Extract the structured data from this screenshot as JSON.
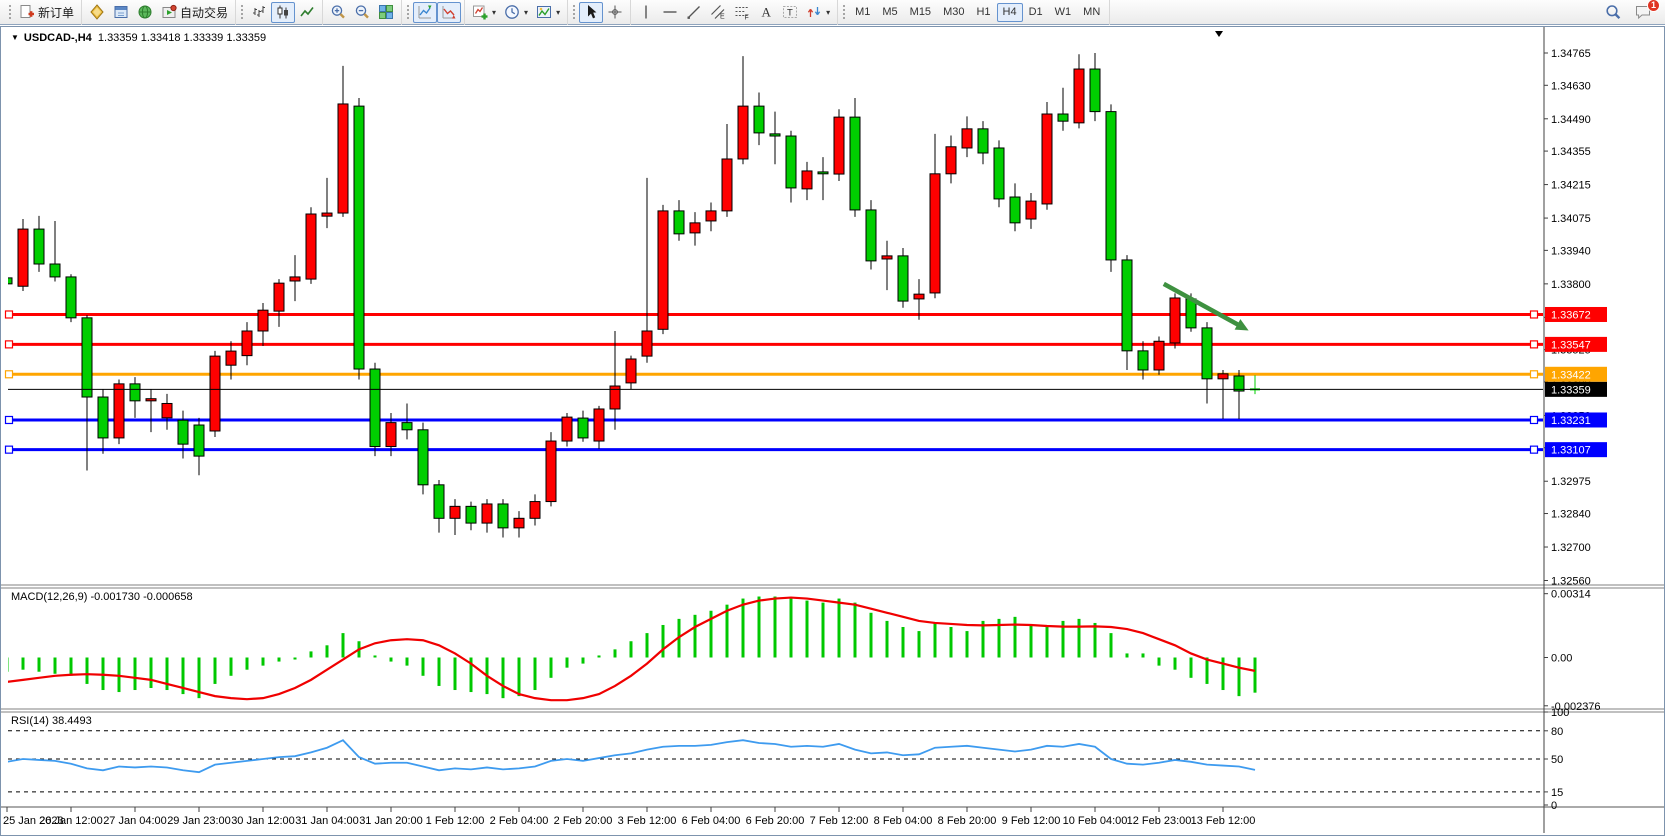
{
  "toolbar": {
    "groups": [
      {
        "name": "orders",
        "grip": true,
        "items": [
          {
            "name": "new-order",
            "icon": "new-order",
            "label": "新订单"
          }
        ]
      },
      {
        "name": "panels",
        "grip": false,
        "items": [
          {
            "name": "market-watch",
            "icon": "market-watch"
          },
          {
            "name": "data-window",
            "icon": "data-window"
          },
          {
            "name": "navigator",
            "icon": "navigator"
          },
          {
            "name": "autotrading",
            "icon": "autotrading",
            "label": "自动交易"
          }
        ]
      },
      {
        "name": "chart-types",
        "grip": true,
        "items": [
          {
            "name": "bar-chart-mode",
            "icon": "bar-chart"
          },
          {
            "name": "candle-chart-mode",
            "icon": "candle-chart",
            "pressed": true
          },
          {
            "name": "line-chart-mode",
            "icon": "line-chart"
          }
        ]
      },
      {
        "name": "zooming",
        "grip": false,
        "items": [
          {
            "name": "zoom-in",
            "icon": "zoom-in"
          },
          {
            "name": "zoom-out",
            "icon": "zoom-out"
          },
          {
            "name": "tile-windows",
            "icon": "tile-windows"
          }
        ]
      },
      {
        "name": "trade-level-toggles",
        "grip": true,
        "items": [
          {
            "name": "show-trade-levels",
            "icon": "trade-levels",
            "pressed": true
          },
          {
            "name": "show-trade-history",
            "icon": "trade-levels-alt",
            "pressed": true
          }
        ]
      },
      {
        "name": "insert-tools",
        "grip": false,
        "items": [
          {
            "name": "add-indicator",
            "icon": "add-indicator",
            "dropdown": true
          },
          {
            "name": "periods",
            "icon": "periods",
            "dropdown": true
          },
          {
            "name": "templates",
            "icon": "templates",
            "dropdown": true
          }
        ]
      },
      {
        "name": "pointer-tools",
        "grip": true,
        "items": [
          {
            "name": "cursor",
            "icon": "cursor",
            "pressed": true
          },
          {
            "name": "crosshair",
            "icon": "crosshair"
          }
        ]
      },
      {
        "name": "drawing-tools",
        "grip": false,
        "items": [
          {
            "name": "vertical-line-tool",
            "icon": "vline"
          },
          {
            "name": "horizontal-line-tool",
            "icon": "hline"
          },
          {
            "name": "trendline-tool",
            "icon": "trendline"
          },
          {
            "name": "channel-tool",
            "icon": "channel"
          },
          {
            "name": "fibonacci-tool",
            "icon": "fibonacci"
          },
          {
            "name": "text-tool",
            "icon": "text"
          },
          {
            "name": "label-tool",
            "icon": "label"
          },
          {
            "name": "arrows-tool",
            "icon": "arrows",
            "dropdown": true
          }
        ]
      },
      {
        "name": "timeframes",
        "grip": true,
        "items": [
          {
            "name": "tf-m1",
            "label": "M1",
            "tf": true
          },
          {
            "name": "tf-m5",
            "label": "M5",
            "tf": true
          },
          {
            "name": "tf-m15",
            "label": "M15",
            "tf": true
          },
          {
            "name": "tf-m30",
            "label": "M30",
            "tf": true
          },
          {
            "name": "tf-h1",
            "label": "H1",
            "tf": true
          },
          {
            "name": "tf-h4",
            "label": "H4",
            "tf": true,
            "pressed": true
          },
          {
            "name": "tf-d1",
            "label": "D1",
            "tf": true
          },
          {
            "name": "tf-w1",
            "label": "W1",
            "tf": true
          },
          {
            "name": "tf-mn",
            "label": "MN",
            "tf": true
          }
        ]
      }
    ],
    "right": [
      {
        "name": "search",
        "icon": "search"
      },
      {
        "name": "notifications",
        "icon": "chat",
        "badge": "1"
      }
    ]
  },
  "chart": {
    "title_symbol": "USDCAD-,H4",
    "title_ohlc": "1.33359 1.33418 1.33339 1.33359"
  },
  "panels": {
    "macd_label": "MACD(12,26,9) -0.001730 -0.000658",
    "rsi_label": "RSI(14) 38.4493"
  },
  "chart_data": {
    "type": "candlestick",
    "symbol": "USDCAD-",
    "timeframe": "H4",
    "bull_color": "#FF0000",
    "bear_color": "#00CE00",
    "note_colors": "chinese convention: red = up, green = down",
    "price_axis_ticks": [
      "1.34765",
      "1.34630",
      "1.34490",
      "1.34355",
      "1.34215",
      "1.34075",
      "1.33940",
      "1.33800",
      "1.33660",
      "1.33525",
      "1.33390",
      "1.33250",
      "1.33115",
      "1.32975",
      "1.32840",
      "1.32700",
      "1.32560"
    ],
    "time_labels": [
      "25 Jan 2023",
      "26 Jan 12:00",
      "27 Jan 04:00",
      "29 Jan 23:00",
      "30 Jan 12:00",
      "31 Jan 04:00",
      "31 Jan 20:00",
      "1 Feb 12:00",
      "2 Feb 04:00",
      "2 Feb 20:00",
      "3 Feb 12:00",
      "6 Feb 04:00",
      "6 Feb 20:00",
      "7 Feb 12:00",
      "8 Feb 04:00",
      "8 Feb 20:00",
      "9 Feb 12:00",
      "10 Feb 04:00",
      "12 Feb 23:00",
      "13 Feb 12:00"
    ],
    "candles": [
      [
        1.33825,
        1.3387,
        1.3377,
        1.338
      ],
      [
        1.3379,
        1.34071,
        1.3377,
        1.34029
      ],
      [
        1.34029,
        1.34084,
        1.3385,
        1.33883
      ],
      [
        1.33883,
        1.34063,
        1.3381,
        1.33829
      ],
      [
        1.33829,
        1.3384,
        1.3364,
        1.33658
      ],
      [
        1.33658,
        1.3367,
        1.3302,
        1.33327
      ],
      [
        1.33327,
        1.3336,
        1.3309,
        1.33156
      ],
      [
        1.33156,
        1.334,
        1.3313,
        1.33382
      ],
      [
        1.33382,
        1.3341,
        1.3324,
        1.33311
      ],
      [
        1.33311,
        1.3336,
        1.3318,
        1.3332
      ],
      [
        1.3324,
        1.3334,
        1.3319,
        1.333
      ],
      [
        1.3323,
        1.3327,
        1.3307,
        1.3313
      ],
      [
        1.3321,
        1.3324,
        1.33,
        1.3308
      ],
      [
        1.33185,
        1.3352,
        1.3316,
        1.33498
      ],
      [
        1.3346,
        1.3356,
        1.334,
        1.33519
      ],
      [
        1.335,
        1.3364,
        1.3346,
        1.33603
      ],
      [
        1.33603,
        1.3372,
        1.3354,
        1.3369
      ],
      [
        1.33686,
        1.3382,
        1.3362,
        1.33803
      ],
      [
        1.33812,
        1.3392,
        1.33728,
        1.33829
      ],
      [
        1.3382,
        1.3412,
        1.338,
        1.34092
      ],
      [
        1.34083,
        1.34243,
        1.34033,
        1.34096
      ],
      [
        1.34096,
        1.34711,
        1.3408,
        1.34552
      ],
      [
        1.34543,
        1.34577,
        1.334,
        1.33444
      ],
      [
        1.33444,
        1.3347,
        1.3308,
        1.3312
      ],
      [
        1.3312,
        1.3326,
        1.3308,
        1.3322
      ],
      [
        1.3322,
        1.333,
        1.3315,
        1.3319
      ],
      [
        1.3319,
        1.3322,
        1.3292,
        1.3296
      ],
      [
        1.3296,
        1.3298,
        1.3276,
        1.3282
      ],
      [
        1.3282,
        1.329,
        1.3275,
        1.3287
      ],
      [
        1.3287,
        1.3289,
        1.3277,
        1.328
      ],
      [
        1.328,
        1.329,
        1.3276,
        1.3288
      ],
      [
        1.3288,
        1.329,
        1.3274,
        1.3278
      ],
      [
        1.3278,
        1.3285,
        1.3274,
        1.3282
      ],
      [
        1.3282,
        1.3292,
        1.3279,
        1.3289
      ],
      [
        1.3289,
        1.3318,
        1.3287,
        1.33143
      ],
      [
        1.33143,
        1.3326,
        1.3312,
        1.33243
      ],
      [
        1.33239,
        1.3327,
        1.3314,
        1.33156
      ],
      [
        1.33143,
        1.3329,
        1.3311,
        1.33277
      ],
      [
        1.33277,
        1.33603,
        1.3319,
        1.33373
      ],
      [
        1.33386,
        1.335,
        1.3336,
        1.33486
      ],
      [
        1.33498,
        1.34243,
        1.3347,
        1.33603
      ],
      [
        1.3361,
        1.3413,
        1.3359,
        1.34105
      ],
      [
        1.34105,
        1.3415,
        1.3398,
        1.34009
      ],
      [
        1.34013,
        1.341,
        1.3396,
        1.34055
      ],
      [
        1.34063,
        1.3414,
        1.3402,
        1.34105
      ],
      [
        1.34105,
        1.34468,
        1.3408,
        1.34322
      ],
      [
        1.34322,
        1.34752,
        1.343,
        1.34543
      ],
      [
        1.34543,
        1.346,
        1.3438,
        1.34431
      ],
      [
        1.34427,
        1.3452,
        1.343,
        1.34418
      ],
      [
        1.34418,
        1.3444,
        1.3414,
        1.34201
      ],
      [
        1.34197,
        1.3431,
        1.3415,
        1.34272
      ],
      [
        1.34268,
        1.3433,
        1.3415,
        1.3426
      ],
      [
        1.34259,
        1.3453,
        1.3423,
        1.34497
      ],
      [
        1.34497,
        1.34577,
        1.3408,
        1.34109
      ],
      [
        1.34109,
        1.3415,
        1.3386,
        1.33896
      ],
      [
        1.33904,
        1.3398,
        1.33774,
        1.33917
      ],
      [
        1.33917,
        1.3395,
        1.337,
        1.33728
      ],
      [
        1.33737,
        1.3382,
        1.3365,
        1.33757
      ],
      [
        1.33762,
        1.34427,
        1.3374,
        1.3426
      ],
      [
        1.3426,
        1.3442,
        1.3422,
        1.34373
      ],
      [
        1.34368,
        1.345,
        1.3433,
        1.34448
      ],
      [
        1.34448,
        1.3448,
        1.343,
        1.34347
      ],
      [
        1.34368,
        1.344,
        1.3412,
        1.34155
      ],
      [
        1.34163,
        1.3422,
        1.3402,
        1.34055
      ],
      [
        1.34071,
        1.3418,
        1.3403,
        1.34146
      ],
      [
        1.34134,
        1.3456,
        1.3411,
        1.3451
      ],
      [
        1.3451,
        1.3462,
        1.3444,
        1.3448
      ],
      [
        1.34473,
        1.3476,
        1.3445,
        1.34698
      ],
      [
        1.34698,
        1.34765,
        1.3448,
        1.3452
      ],
      [
        1.3452,
        1.3455,
        1.3385,
        1.339
      ],
      [
        1.339,
        1.3392,
        1.3344,
        1.3352
      ],
      [
        1.3352,
        1.3356,
        1.334,
        1.3344
      ],
      [
        1.3344,
        1.3358,
        1.3342,
        1.3356
      ],
      [
        1.33553,
        1.3376,
        1.3353,
        1.33741
      ],
      [
        1.33737,
        1.3376,
        1.336,
        1.33616
      ],
      [
        1.33616,
        1.3364,
        1.333,
        1.33403
      ],
      [
        1.33403,
        1.3344,
        1.33235,
        1.33424
      ],
      [
        1.33415,
        1.3344,
        1.33235,
        1.33352
      ],
      [
        1.33359,
        1.33418,
        1.33339,
        1.33359
      ]
    ],
    "levels": [
      {
        "price": 1.33672,
        "label": "1.33672",
        "color": "#FF0000"
      },
      {
        "price": 1.33547,
        "label": "1.33547",
        "color": "#FF0000"
      },
      {
        "price": 1.33422,
        "label": "1.33422",
        "color": "#FFA500"
      },
      {
        "price": 1.33231,
        "label": "1.33231",
        "color": "#0000FF"
      },
      {
        "price": 1.33107,
        "label": "1.33107",
        "color": "#0000FF"
      }
    ],
    "bid_line": {
      "price": 1.33359,
      "label": "1.33359",
      "color": "#000000"
    },
    "arrow_annotation": {
      "from_index": 72.3,
      "from_price": 1.338,
      "to_index": 77.6,
      "to_price": 1.33605,
      "color": "#3E9140"
    },
    "macd": {
      "title": "MACD(12,26,9)",
      "current": -0.00173,
      "signal_current": -0.000658,
      "axis_labels": [
        "0.00314",
        "0.00",
        "-0.002376"
      ],
      "histogram_color": "#00C800",
      "signal_color": "#F00000",
      "histogram": [
        -0.0007,
        -0.0006,
        -0.0007,
        -0.0008,
        -0.0009,
        -0.0013,
        -0.0016,
        -0.0017,
        -0.0016,
        -0.0015,
        -0.0016,
        -0.0018,
        -0.002,
        -0.0013,
        -0.0009,
        -0.0006,
        -0.0004,
        -0.0002,
        -0.0001,
        0.0003,
        0.0006,
        0.0012,
        0.0008,
        0.0001,
        -0.0002,
        -0.0004,
        -0.0009,
        -0.0014,
        -0.0016,
        -0.0017,
        -0.0018,
        -0.002,
        -0.0019,
        -0.0016,
        -0.001,
        -0.0005,
        -0.0003,
        0.0001,
        0.0004,
        0.0008,
        0.0012,
        0.0016,
        0.0019,
        0.0021,
        0.0023,
        0.0026,
        0.0029,
        0.003,
        0.003,
        0.0029,
        0.0028,
        0.0027,
        0.0029,
        0.0027,
        0.0022,
        0.0018,
        0.0015,
        0.0013,
        0.0017,
        0.0015,
        0.0013,
        0.0018,
        0.0019,
        0.002,
        0.0016,
        0.0015,
        0.0018,
        0.0019,
        0.0017,
        0.0012,
        0.0002,
        0.0002,
        -0.0004,
        -0.0006,
        -0.001,
        -0.0013,
        -0.0016,
        -0.0019,
        -0.00173
      ],
      "signal": [
        -0.0012,
        -0.0011,
        -0.001,
        -0.0009,
        -0.00085,
        -0.00082,
        -0.00085,
        -0.0009,
        -0.001,
        -0.0011,
        -0.0013,
        -0.0015,
        -0.0017,
        -0.0019,
        -0.002,
        -0.00205,
        -0.002,
        -0.0018,
        -0.0015,
        -0.0011,
        -0.0006,
        -0.0001,
        0.0004,
        0.0007,
        0.00085,
        0.0009,
        0.00085,
        0.0006,
        0.0002,
        -0.0003,
        -0.0009,
        -0.0014,
        -0.0018,
        -0.002,
        -0.0021,
        -0.0021,
        -0.002,
        -0.0018,
        -0.0014,
        -0.0009,
        -0.0003,
        0.0004,
        0.001,
        0.0015,
        0.0019,
        0.0023,
        0.0026,
        0.0028,
        0.0029,
        0.00295,
        0.0029,
        0.0028,
        0.0027,
        0.0026,
        0.0024,
        0.0022,
        0.002,
        0.0018,
        0.0017,
        0.00165,
        0.0016,
        0.00158,
        0.0016,
        0.00162,
        0.0016,
        0.00155,
        0.00152,
        0.00152,
        0.00153,
        0.0015,
        0.0014,
        0.0012,
        0.0009,
        0.0006,
        0.0002,
        -0.0001,
        -0.0003,
        -0.0005,
        -0.000658
      ]
    },
    "rsi": {
      "title": "RSI(14)",
      "current": 38.4493,
      "axis_labels": [
        "100",
        "80",
        "50",
        "15",
        "0"
      ],
      "dashed_levels": [
        80,
        50,
        15
      ],
      "line_color": "#3E9BEF",
      "values": [
        47,
        50,
        49,
        48,
        45,
        40,
        38,
        42,
        41,
        42,
        41,
        38,
        36,
        44,
        46,
        48,
        50,
        52,
        53,
        57,
        62,
        70,
        52,
        45,
        46,
        46,
        42,
        38,
        40,
        39,
        41,
        39,
        40,
        42,
        48,
        50,
        48,
        51,
        54,
        56,
        60,
        63,
        64,
        64,
        65,
        68,
        70,
        67,
        66,
        63,
        64,
        63,
        66,
        60,
        56,
        57,
        54,
        55,
        62,
        63,
        64,
        62,
        60,
        58,
        60,
        64,
        63,
        66,
        63,
        50,
        45,
        44,
        46,
        49,
        47,
        44,
        43,
        42,
        38.4
      ]
    }
  }
}
